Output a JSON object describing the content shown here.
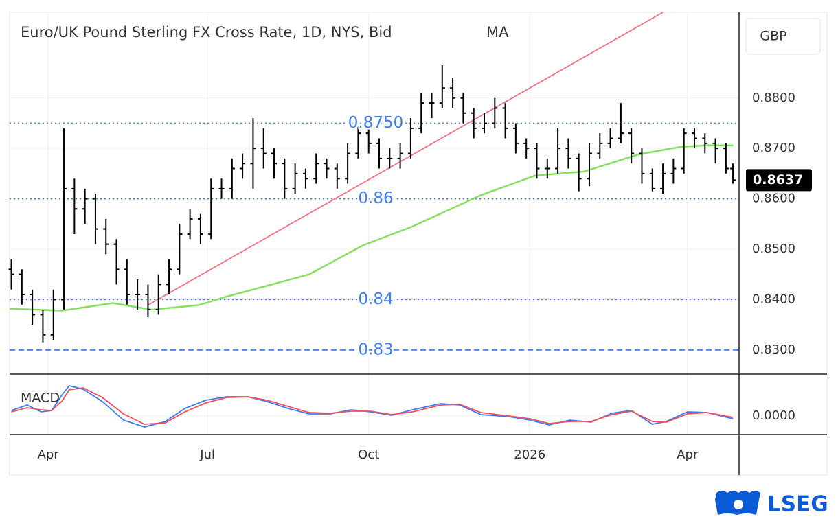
{
  "chart_data": [
    {
      "type": "ohlc",
      "title": "Euro/UK Pound Sterling FX Cross Rate, 1D, NYS, Bid",
      "indicator": "MA",
      "xlim": [
        -22,
        394.5
      ],
      "ylim": [
        0.8252,
        0.897
      ],
      "yticks": [
        {
          "value": 0.83,
          "label": "0.8300"
        },
        {
          "value": 0.84,
          "label": "0.8400"
        },
        {
          "value": 0.85,
          "label": "0.8500"
        },
        {
          "value": 0.86,
          "label": "0.8600"
        },
        {
          "value": 0.87,
          "label": "0.8700"
        },
        {
          "value": 0.88,
          "label": "0.8800"
        }
      ],
      "grid": true,
      "color": "#000000",
      "x": [
        -21,
        -15,
        -9,
        -3,
        3,
        9,
        15,
        21,
        27,
        33,
        39,
        45,
        51,
        57,
        63,
        69,
        75,
        81,
        87,
        93,
        99,
        105,
        111,
        117,
        123,
        129,
        135,
        141,
        147,
        153,
        159,
        165,
        171,
        177,
        183,
        189,
        195,
        201,
        207,
        213,
        219,
        225,
        231,
        237,
        243,
        249,
        255,
        261,
        267,
        273,
        279,
        285,
        291,
        297,
        303,
        309,
        315,
        321,
        327,
        333,
        339,
        345,
        351,
        357,
        363,
        369,
        375,
        381,
        387,
        391
      ],
      "ohlc": [
        [
          0.846,
          0.848,
          0.842,
          0.845
        ],
        [
          0.845,
          0.846,
          0.839,
          0.841
        ],
        [
          0.841,
          0.842,
          0.835,
          0.837
        ],
        [
          0.837,
          0.838,
          0.8315,
          0.833
        ],
        [
          0.833,
          0.842,
          0.832,
          0.84
        ],
        [
          0.84,
          0.874,
          0.838,
          0.862
        ],
        [
          0.862,
          0.864,
          0.853,
          0.858
        ],
        [
          0.858,
          0.862,
          0.855,
          0.86
        ],
        [
          0.86,
          0.861,
          0.851,
          0.854
        ],
        [
          0.854,
          0.856,
          0.849,
          0.851
        ],
        [
          0.851,
          0.852,
          0.843,
          0.846
        ],
        [
          0.846,
          0.848,
          0.839,
          0.841
        ],
        [
          0.841,
          0.844,
          0.838,
          0.841
        ],
        [
          0.841,
          0.843,
          0.8365,
          0.838
        ],
        [
          0.838,
          0.845,
          0.837,
          0.843
        ],
        [
          0.843,
          0.848,
          0.841,
          0.846
        ],
        [
          0.846,
          0.855,
          0.845,
          0.853
        ],
        [
          0.853,
          0.858,
          0.852,
          0.856
        ],
        [
          0.856,
          0.857,
          0.851,
          0.853
        ],
        [
          0.853,
          0.864,
          0.852,
          0.862
        ],
        [
          0.862,
          0.864,
          0.86,
          0.862
        ],
        [
          0.862,
          0.868,
          0.86,
          0.866
        ],
        [
          0.866,
          0.869,
          0.864,
          0.867
        ],
        [
          0.867,
          0.876,
          0.862,
          0.87
        ],
        [
          0.87,
          0.874,
          0.866,
          0.869
        ],
        [
          0.869,
          0.87,
          0.864,
          0.867
        ],
        [
          0.867,
          0.868,
          0.86,
          0.862
        ],
        [
          0.862,
          0.867,
          0.861,
          0.865
        ],
        [
          0.865,
          0.866,
          0.862,
          0.864
        ],
        [
          0.864,
          0.869,
          0.863,
          0.867
        ],
        [
          0.867,
          0.868,
          0.864,
          0.866
        ],
        [
          0.866,
          0.867,
          0.862,
          0.864
        ],
        [
          0.864,
          0.871,
          0.863,
          0.869
        ],
        [
          0.869,
          0.875,
          0.868,
          0.873
        ],
        [
          0.873,
          0.874,
          0.869,
          0.871
        ],
        [
          0.871,
          0.872,
          0.866,
          0.868
        ],
        [
          0.868,
          0.87,
          0.866,
          0.868
        ],
        [
          0.868,
          0.871,
          0.866,
          0.869
        ],
        [
          0.869,
          0.876,
          0.868,
          0.874
        ],
        [
          0.874,
          0.881,
          0.873,
          0.879
        ],
        [
          0.879,
          0.881,
          0.876,
          0.879
        ],
        [
          0.879,
          0.8865,
          0.878,
          0.882
        ],
        [
          0.882,
          0.884,
          0.878,
          0.88
        ],
        [
          0.88,
          0.881,
          0.875,
          0.877
        ],
        [
          0.877,
          0.878,
          0.872,
          0.874
        ],
        [
          0.874,
          0.877,
          0.873,
          0.875
        ],
        [
          0.875,
          0.88,
          0.874,
          0.878
        ],
        [
          0.878,
          0.879,
          0.872,
          0.874
        ],
        [
          0.874,
          0.875,
          0.869,
          0.871
        ],
        [
          0.871,
          0.872,
          0.868,
          0.87
        ],
        [
          0.87,
          0.871,
          0.864,
          0.866
        ],
        [
          0.866,
          0.868,
          0.864,
          0.866
        ],
        [
          0.866,
          0.874,
          0.865,
          0.87
        ],
        [
          0.87,
          0.872,
          0.866,
          0.868
        ],
        [
          0.868,
          0.869,
          0.8615,
          0.864
        ],
        [
          0.864,
          0.871,
          0.8625,
          0.869
        ],
        [
          0.869,
          0.873,
          0.868,
          0.871
        ],
        [
          0.871,
          0.874,
          0.87,
          0.872
        ],
        [
          0.872,
          0.879,
          0.871,
          0.873
        ],
        [
          0.873,
          0.874,
          0.867,
          0.869
        ],
        [
          0.869,
          0.87,
          0.863,
          0.865
        ],
        [
          0.865,
          0.866,
          0.8615,
          0.862
        ],
        [
          0.862,
          0.867,
          0.861,
          0.865
        ],
        [
          0.865,
          0.868,
          0.863,
          0.866
        ],
        [
          0.866,
          0.874,
          0.865,
          0.873
        ],
        [
          0.873,
          0.874,
          0.87,
          0.872
        ],
        [
          0.872,
          0.873,
          0.869,
          0.871
        ],
        [
          0.871,
          0.872,
          0.867,
          0.87
        ],
        [
          0.87,
          0.871,
          0.865,
          0.866
        ],
        [
          0.866,
          0.867,
          0.863,
          0.8637
        ]
      ],
      "last_price": 0.8637,
      "ma": {
        "color": "#86e060",
        "x": [
          -22,
          8,
          37,
          59,
          86,
          102,
          149,
          180,
          208,
          247,
          278,
          306,
          337,
          361,
          376,
          391
        ],
        "values": [
          0.8382,
          0.8378,
          0.8393,
          0.838,
          0.8389,
          0.8406,
          0.845,
          0.8508,
          0.8545,
          0.8607,
          0.8646,
          0.8654,
          0.8688,
          0.8703,
          0.8706,
          0.8706
        ]
      },
      "trendline": {
        "color": "#f27380",
        "x": [
          57,
          351
        ],
        "values": [
          0.8389,
          0.897
        ]
      },
      "level_color": "#3d7cf5",
      "levels": [
        {
          "value": 0.875,
          "label": "0.8750",
          "style": "dotted"
        },
        {
          "value": 0.86,
          "label": "0.86",
          "style": "dotted"
        },
        {
          "value": 0.84,
          "label": "0.84",
          "style": "dotted"
        },
        {
          "value": 0.83,
          "label": "0.83",
          "style": "dashed"
        }
      ]
    },
    {
      "type": "line",
      "label": "MACD",
      "xlim": [
        -22,
        394.5
      ],
      "xticks": [
        {
          "value": 0,
          "label": "Apr"
        },
        {
          "value": 91,
          "label": "Jul"
        },
        {
          "value": 183,
          "label": "Oct"
        },
        {
          "value": 275,
          "label": "2026"
        },
        {
          "value": 365,
          "label": "Apr"
        }
      ],
      "ylim": [
        -0.0027,
        0.0059
      ],
      "yticks": [
        {
          "value": 0,
          "label": "0.0000"
        }
      ],
      "x": [
        -21,
        -12,
        -4,
        2,
        8,
        12,
        20,
        31,
        43,
        55,
        67,
        78,
        90,
        102,
        114,
        125,
        137,
        149,
        161,
        173,
        184,
        196,
        208,
        224,
        235,
        247,
        263,
        275,
        286,
        298,
        310,
        322,
        333,
        345,
        353,
        365,
        376,
        391
      ],
      "series": [
        {
          "color": "#3d7cf5",
          "values": [
            0.0008,
            0.0016,
            0.0006,
            0.0008,
            0.0031,
            0.0044,
            0.0039,
            0.0021,
            -0.0006,
            -0.0016,
            -0.0008,
            0.0011,
            0.0023,
            0.0028,
            0.0028,
            0.0021,
            0.0011,
            0.0003,
            0.0003,
            0.0009,
            0.0006,
            0.0001,
            0.0009,
            0.0018,
            0.0016,
            0.0002,
            -0.0001,
            -0.0006,
            -0.0013,
            -0.0006,
            -0.0009,
            0.0004,
            0.0008,
            -0.0012,
            -0.0008,
            0.0006,
            0.0005,
            -0.0004
          ]
        },
        {
          "color": "#f0505a",
          "values": [
            0.0006,
            0.0012,
            0.0009,
            0.0008,
            0.0022,
            0.0038,
            0.0041,
            0.0027,
            0.0003,
            -0.0012,
            -0.001,
            0.0006,
            0.0019,
            0.0027,
            0.0028,
            0.0023,
            0.0014,
            0.0005,
            0.0004,
            0.0007,
            0.0007,
            0.0002,
            0.0006,
            0.0016,
            0.0017,
            0.0005,
            0,
            -0.0004,
            -0.0011,
            -0.0008,
            -0.0008,
            0.0002,
            0.0007,
            -0.0008,
            -0.0009,
            0.0003,
            0.0005,
            -0.0002
          ]
        }
      ]
    }
  ],
  "currency": "GBP",
  "brand": "LSEG"
}
